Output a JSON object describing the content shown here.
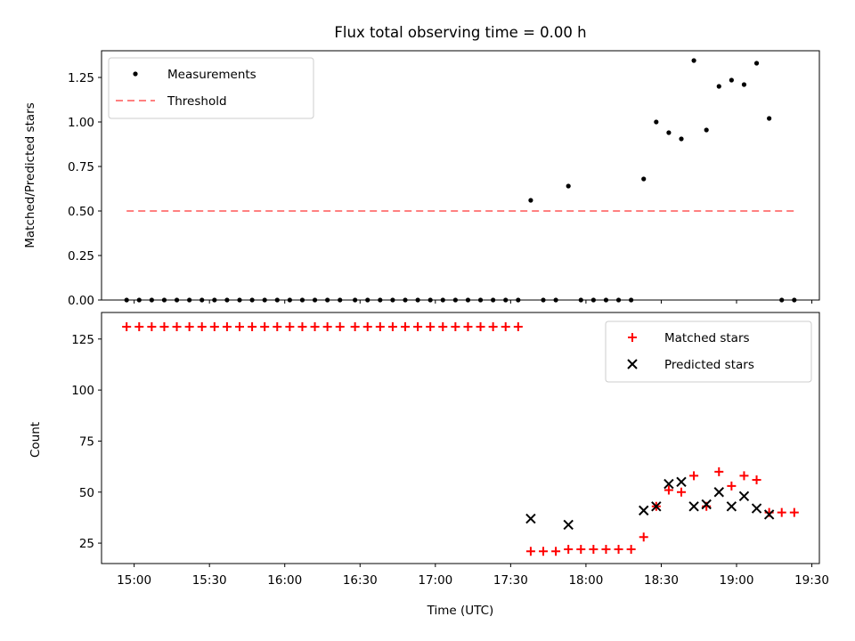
{
  "chart_data": [
    {
      "type": "scatter",
      "title": "Flux total observing time = 0.00 h",
      "xlabel": "",
      "ylabel": "Matched/Predicted stars",
      "ylim": [
        0.0,
        1.4
      ],
      "yticks": [
        "0.00",
        "0.25",
        "0.50",
        "0.75",
        "1.00",
        "1.25"
      ],
      "xlim": [
        "14:47",
        "19:33"
      ],
      "xticks": [
        "15:00",
        "15:30",
        "16:00",
        "16:30",
        "17:00",
        "17:30",
        "18:00",
        "18:30",
        "19:00",
        "19:30"
      ],
      "show_xtick_labels": false,
      "legend_position": "top-left",
      "series": [
        {
          "name": "Measurements",
          "marker": "dot",
          "color": "#000000",
          "x": [
            "14:57",
            "15:02",
            "15:07",
            "15:12",
            "15:17",
            "15:22",
            "15:27",
            "15:32",
            "15:37",
            "15:42",
            "15:47",
            "15:52",
            "15:57",
            "16:02",
            "16:07",
            "16:12",
            "16:17",
            "16:22",
            "16:28",
            "16:33",
            "16:38",
            "16:43",
            "16:48",
            "16:53",
            "16:58",
            "17:03",
            "17:08",
            "17:13",
            "17:18",
            "17:23",
            "17:28",
            "17:33",
            "17:38",
            "17:43",
            "17:48",
            "17:53",
            "17:58",
            "18:03",
            "18:08",
            "18:13",
            "18:18",
            "18:23",
            "18:28",
            "18:33",
            "18:38",
            "18:43",
            "18:48",
            "18:53",
            "18:58",
            "19:03",
            "19:08",
            "19:13",
            "19:18",
            "19:23"
          ],
          "y": [
            0,
            0,
            0,
            0,
            0,
            0,
            0,
            0,
            0,
            0,
            0,
            0,
            0,
            0,
            0,
            0,
            0,
            0,
            0,
            0,
            0,
            0,
            0,
            0,
            0,
            0,
            0,
            0,
            0,
            0,
            0,
            0,
            0.56,
            0,
            0,
            0.64,
            0,
            0,
            0,
            0,
            0,
            0.68,
            1.0,
            0.94,
            0.905,
            1.345,
            0.955,
            1.2,
            1.235,
            1.21,
            1.33,
            1.02,
            0,
            0
          ]
        },
        {
          "name": "Threshold",
          "line": "dashed",
          "color": "#ff8080",
          "x": [
            "14:57",
            "19:23"
          ],
          "y": [
            0.5,
            0.5
          ]
        }
      ]
    },
    {
      "type": "scatter",
      "title": "",
      "xlabel": "Time (UTC)",
      "ylabel": "Count",
      "ylim": [
        15,
        138
      ],
      "yticks": [
        "25",
        "50",
        "75",
        "100",
        "125"
      ],
      "xlim": [
        "14:47",
        "19:33"
      ],
      "xticks": [
        "15:00",
        "15:30",
        "16:00",
        "16:30",
        "17:00",
        "17:30",
        "18:00",
        "18:30",
        "19:00",
        "19:30"
      ],
      "show_xtick_labels": true,
      "legend_position": "top-right",
      "series": [
        {
          "name": "Matched stars",
          "marker": "plus",
          "color": "#ff0000",
          "x": [
            "14:57",
            "15:02",
            "15:07",
            "15:12",
            "15:17",
            "15:22",
            "15:27",
            "15:32",
            "15:37",
            "15:42",
            "15:47",
            "15:52",
            "15:57",
            "16:02",
            "16:07",
            "16:12",
            "16:17",
            "16:22",
            "16:28",
            "16:33",
            "16:38",
            "16:43",
            "16:48",
            "16:53",
            "16:58",
            "17:03",
            "17:08",
            "17:13",
            "17:18",
            "17:23",
            "17:28",
            "17:33",
            "17:38",
            "17:43",
            "17:48",
            "17:53",
            "17:58",
            "18:03",
            "18:08",
            "18:13",
            "18:18",
            "18:23",
            "18:28",
            "18:33",
            "18:38",
            "18:43",
            "18:48",
            "18:53",
            "18:58",
            "19:03",
            "19:08",
            "19:13",
            "19:18",
            "19:23"
          ],
          "y": [
            131,
            131,
            131,
            131,
            131,
            131,
            131,
            131,
            131,
            131,
            131,
            131,
            131,
            131,
            131,
            131,
            131,
            131,
            131,
            131,
            131,
            131,
            131,
            131,
            131,
            131,
            131,
            131,
            131,
            131,
            131,
            131,
            21,
            21,
            21,
            22,
            22,
            22,
            22,
            22,
            22,
            28,
            43,
            51,
            50,
            58,
            43,
            60,
            53,
            58,
            56,
            40,
            40,
            40
          ]
        },
        {
          "name": "Predicted stars",
          "marker": "x",
          "color": "#000000",
          "x": [
            "17:38",
            "17:53",
            "18:23",
            "18:28",
            "18:33",
            "18:38",
            "18:43",
            "18:48",
            "18:53",
            "18:58",
            "19:03",
            "19:08",
            "19:13"
          ],
          "y": [
            37,
            34,
            41,
            43,
            54,
            55,
            43,
            44,
            50,
            43,
            48,
            42,
            39
          ]
        }
      ]
    }
  ]
}
